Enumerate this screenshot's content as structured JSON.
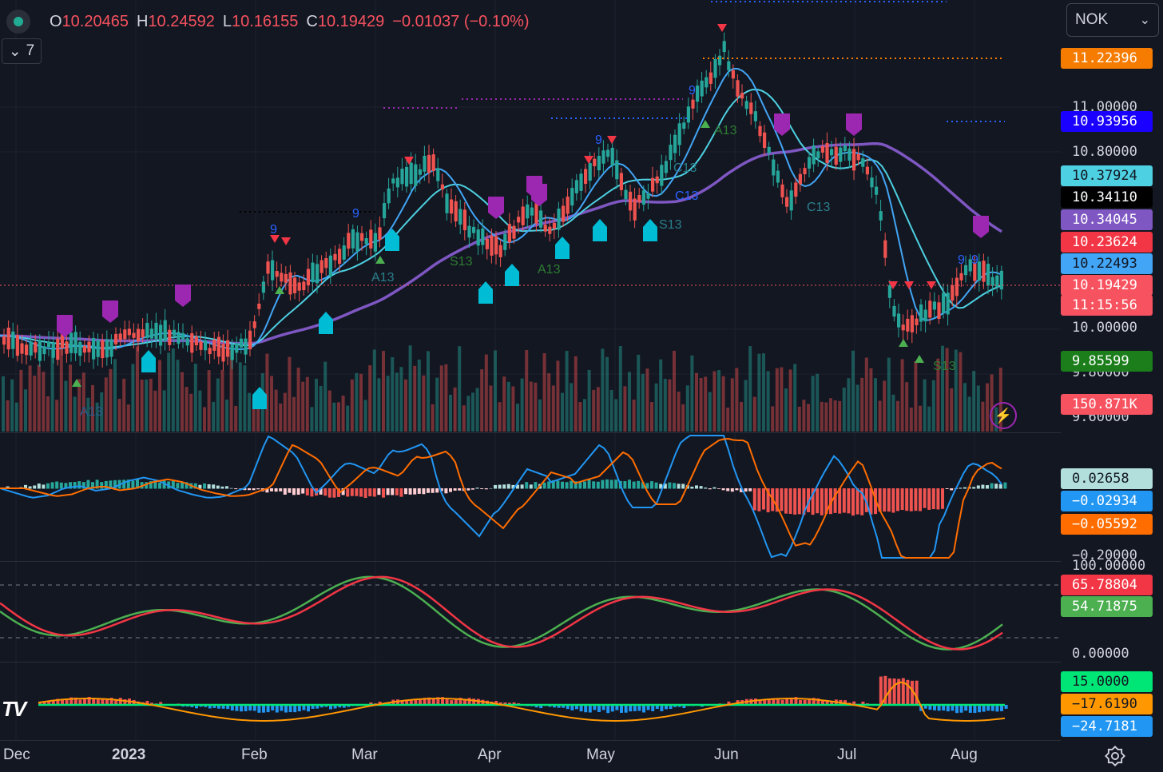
{
  "header": {
    "open_label": "O",
    "open_value": "10.20465",
    "high_label": "H",
    "high_value": "10.24592",
    "low_label": "L",
    "low_value": "10.16155",
    "close_label": "C",
    "close_value": "10.19429",
    "change": "−0.01037 (−0.10%)"
  },
  "indicator_toggle": {
    "icon": "chevron-down-icon",
    "count": "7"
  },
  "symbol_select": {
    "value": "NOK",
    "icon": "chevron-down-icon"
  },
  "price_axis_ticks": [
    "11.00000",
    "10.80000",
    "10.00000",
    "9.80000",
    "9.60000"
  ],
  "price_labels": [
    {
      "text": "11.22396",
      "bg": "#f57c00",
      "fg": "#ffffff"
    },
    {
      "text": "10.93956",
      "bg": "#1a00ff",
      "fg": "#ffffff"
    },
    {
      "text": "10.37924",
      "bg": "#4dd0e1",
      "fg": "#131722"
    },
    {
      "text": "10.34110",
      "bg": "#000000",
      "fg": "#ffffff"
    },
    {
      "text": "10.34045",
      "bg": "#7e57c2",
      "fg": "#ffffff"
    },
    {
      "text": "10.23624",
      "bg": "#f23645",
      "fg": "#ffffff"
    },
    {
      "text": "10.22493",
      "bg": "#42a5f5",
      "fg": "#131722"
    },
    {
      "text": "10.19429",
      "bg": "#f7525f",
      "fg": "#ffffff"
    },
    {
      "text": "11:15:56",
      "bg": "#f7525f",
      "fg": "#ffffff"
    },
    {
      "text": "9.85599",
      "bg": "#1b7e1b",
      "fg": "#ffffff"
    },
    {
      "text": "150.871K",
      "bg": "#f7525f",
      "fg": "#ffffff"
    }
  ],
  "macd_pane": {
    "ticks": [
      "−0.20000"
    ],
    "labels": [
      {
        "text": "0.02658",
        "bg": "#b2dfdb",
        "fg": "#131722"
      },
      {
        "text": "−0.02934",
        "bg": "#2196f3",
        "fg": "#ffffff"
      },
      {
        "text": "−0.05592",
        "bg": "#ff6d00",
        "fg": "#ffffff"
      }
    ]
  },
  "stoch_pane": {
    "ticks": [
      "100.00000",
      "0.00000"
    ],
    "labels": [
      {
        "text": "65.78804",
        "bg": "#f23645",
        "fg": "#ffffff"
      },
      {
        "text": "54.71875",
        "bg": "#4caf50",
        "fg": "#ffffff"
      }
    ]
  },
  "osc_pane": {
    "labels": [
      {
        "text": "15.0000",
        "bg": "#00e676",
        "fg": "#131722"
      },
      {
        "text": "−17.6190",
        "bg": "#ff9800",
        "fg": "#131722"
      },
      {
        "text": "−24.7181",
        "bg": "#2196f3",
        "fg": "#ffffff"
      }
    ]
  },
  "x_axis": [
    {
      "label": "Dec",
      "bold": false
    },
    {
      "label": "2023",
      "bold": true
    },
    {
      "label": "Feb",
      "bold": false
    },
    {
      "label": "Mar",
      "bold": false
    },
    {
      "label": "Apr",
      "bold": false
    },
    {
      "label": "May",
      "bold": false
    },
    {
      "label": "Jun",
      "bold": false
    },
    {
      "label": "Jul",
      "bold": false
    },
    {
      "label": "Aug",
      "bold": false
    }
  ],
  "chart_marks": {
    "setup_labels": [
      "9",
      "9",
      "9",
      "9",
      "9",
      "9"
    ],
    "countdown_labels": [
      "A13",
      "A13",
      "S13",
      "A13",
      "C13",
      "C13",
      "S13",
      "A13",
      "S13",
      "C13"
    ]
  },
  "colors": {
    "background": "#131722",
    "up": "#26a69a",
    "down": "#ef5350",
    "ma_fast": "#42a5f5",
    "ma_mid": "#4dd0e1",
    "ma_slow": "#7e57c2",
    "tv_logo": "TV"
  }
}
